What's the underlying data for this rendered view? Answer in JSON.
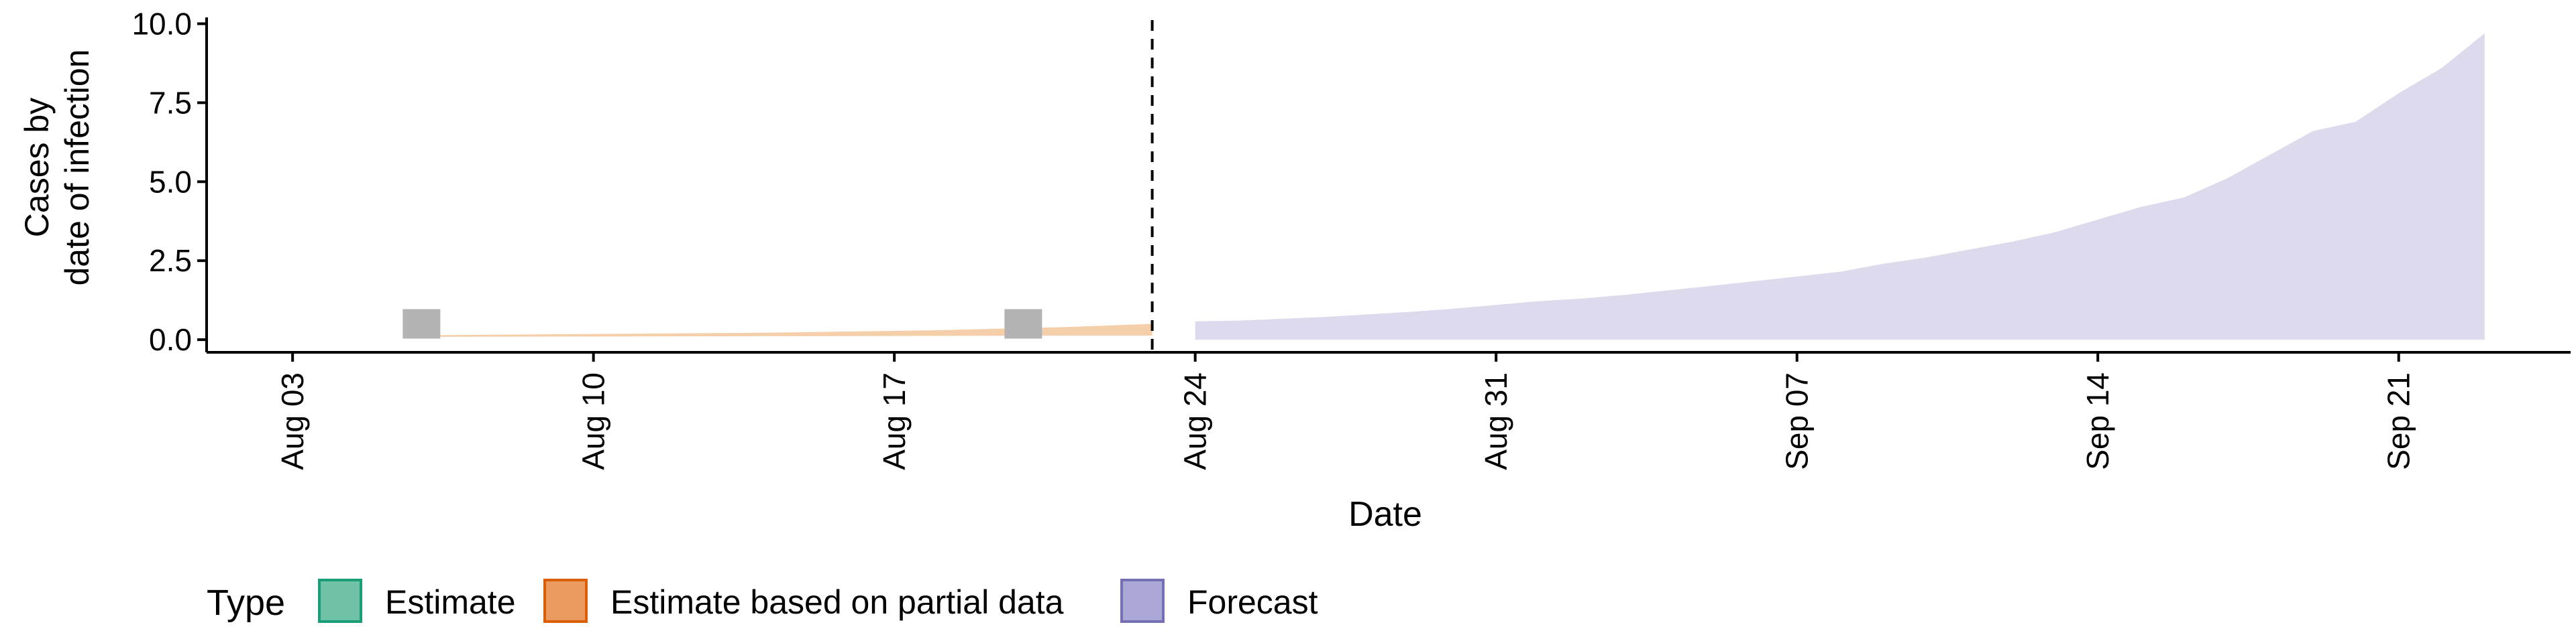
{
  "chart_data": {
    "type": "area",
    "xlabel": "Date",
    "ylabel": [
      "Cases by",
      "date of infection"
    ],
    "xlim": [
      "2020-08-01",
      "2020-09-25"
    ],
    "ylim": [
      -0.4,
      10.2
    ],
    "yticks": [
      0.0,
      2.5,
      5.0,
      7.5,
      10.0
    ],
    "ytick_labels": [
      "0.0",
      "2.5",
      "5.0",
      "7.5",
      "10.0"
    ],
    "xticks": [
      "2020-08-03",
      "2020-08-10",
      "2020-08-17",
      "2020-08-24",
      "2020-08-31",
      "2020-09-07",
      "2020-09-14",
      "2020-09-21"
    ],
    "xtick_labels": [
      "Aug 03",
      "Aug 10",
      "Aug 17",
      "Aug 24",
      "Aug 31",
      "Sep 07",
      "Sep 14",
      "Sep 21"
    ],
    "vline": {
      "date": "2020-08-23",
      "style": "dashed"
    },
    "points": [
      {
        "date": "2020-08-06",
        "value": 0.5
      },
      {
        "date": "2020-08-20",
        "value": 0.5
      }
    ],
    "series": [
      {
        "name": "Estimate based on partial data",
        "color": "#f5cfaa",
        "band": [
          {
            "date": "2020-08-06",
            "lower": 0.09,
            "upper": 0.14
          },
          {
            "date": "2020-08-10",
            "lower": 0.1,
            "upper": 0.18
          },
          {
            "date": "2020-08-14",
            "lower": 0.11,
            "upper": 0.22
          },
          {
            "date": "2020-08-18",
            "lower": 0.12,
            "upper": 0.3
          },
          {
            "date": "2020-08-21",
            "lower": 0.13,
            "upper": 0.4
          },
          {
            "date": "2020-08-23",
            "lower": 0.13,
            "upper": 0.5
          }
        ]
      },
      {
        "name": "Forecast",
        "color": "#dcdaec",
        "band": [
          {
            "date": "2020-08-24",
            "lower": 0,
            "upper": 0.58
          },
          {
            "date": "2020-08-25",
            "lower": 0,
            "upper": 0.6
          },
          {
            "date": "2020-08-26",
            "lower": 0,
            "upper": 0.66
          },
          {
            "date": "2020-08-27",
            "lower": 0,
            "upper": 0.72
          },
          {
            "date": "2020-08-28",
            "lower": 0,
            "upper": 0.8
          },
          {
            "date": "2020-08-29",
            "lower": 0,
            "upper": 0.88
          },
          {
            "date": "2020-08-30",
            "lower": 0,
            "upper": 0.98
          },
          {
            "date": "2020-08-31",
            "lower": 0,
            "upper": 1.1
          },
          {
            "date": "2020-09-01",
            "lower": 0,
            "upper": 1.22
          },
          {
            "date": "2020-09-02",
            "lower": 0,
            "upper": 1.3
          },
          {
            "date": "2020-09-03",
            "lower": 0,
            "upper": 1.42
          },
          {
            "date": "2020-09-04",
            "lower": 0,
            "upper": 1.56
          },
          {
            "date": "2020-09-05",
            "lower": 0,
            "upper": 1.7
          },
          {
            "date": "2020-09-06",
            "lower": 0,
            "upper": 1.85
          },
          {
            "date": "2020-09-07",
            "lower": 0,
            "upper": 2.0
          },
          {
            "date": "2020-09-08",
            "lower": 0,
            "upper": 2.15
          },
          {
            "date": "2020-09-09",
            "lower": 0,
            "upper": 2.4
          },
          {
            "date": "2020-09-10",
            "lower": 0,
            "upper": 2.6
          },
          {
            "date": "2020-09-11",
            "lower": 0,
            "upper": 2.85
          },
          {
            "date": "2020-09-12",
            "lower": 0,
            "upper": 3.1
          },
          {
            "date": "2020-09-13",
            "lower": 0,
            "upper": 3.4
          },
          {
            "date": "2020-09-14",
            "lower": 0,
            "upper": 3.8
          },
          {
            "date": "2020-09-15",
            "lower": 0,
            "upper": 4.2
          },
          {
            "date": "2020-09-16",
            "lower": 0,
            "upper": 4.5
          },
          {
            "date": "2020-09-17",
            "lower": 0,
            "upper": 5.1
          },
          {
            "date": "2020-09-18",
            "lower": 0,
            "upper": 5.85
          },
          {
            "date": "2020-09-19",
            "lower": 0,
            "upper": 6.6
          },
          {
            "date": "2020-09-20",
            "lower": 0,
            "upper": 6.9
          },
          {
            "date": "2020-09-21",
            "lower": 0,
            "upper": 7.8
          },
          {
            "date": "2020-09-22",
            "lower": 0,
            "upper": 8.6
          },
          {
            "date": "2020-09-23",
            "lower": 0,
            "upper": 9.7
          }
        ]
      }
    ],
    "legend": {
      "title": "Type",
      "position": "bottom",
      "items": [
        {
          "label": "Estimate",
          "fill": "#6fc2a5",
          "stroke": "#1b9e77"
        },
        {
          "label": "Estimate based on partial data",
          "fill": "#eb9b61",
          "stroke": "#d95f02"
        },
        {
          "label": "Forecast",
          "fill": "#aba7d6",
          "stroke": "#7570b3"
        }
      ]
    }
  }
}
